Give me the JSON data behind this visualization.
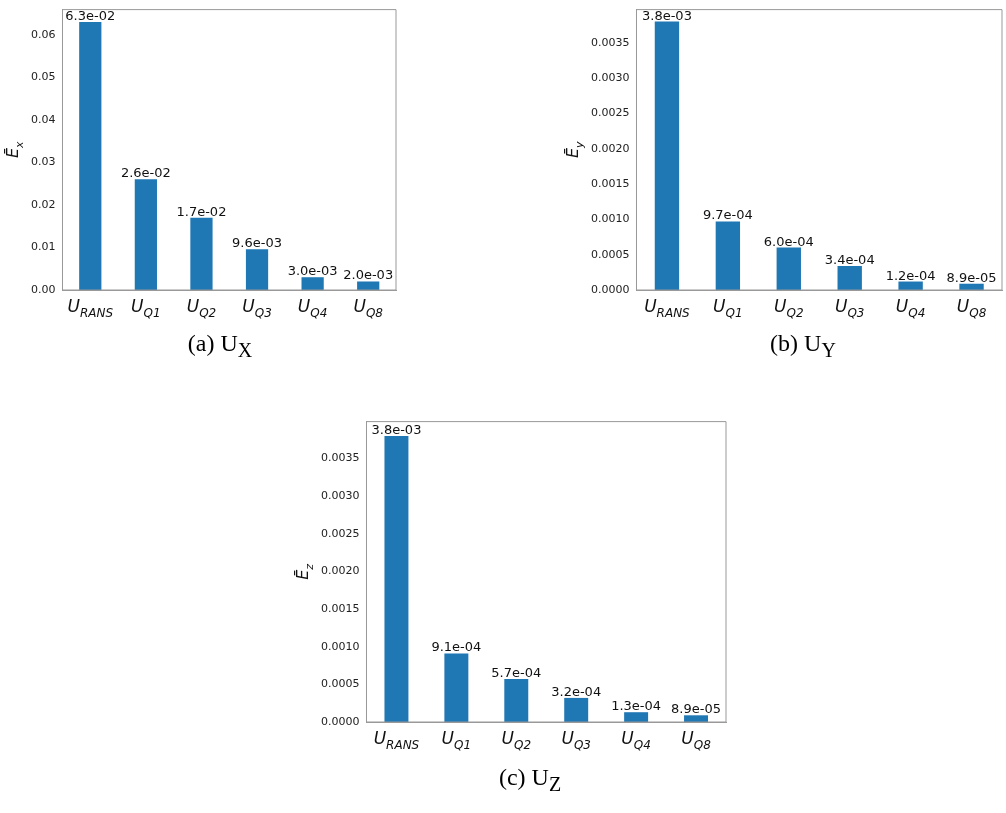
{
  "chart_data": [
    {
      "type": "bar",
      "title": "(a) U$_{X}$",
      "ylabel": "Ē$_{x}$",
      "categories": [
        "U$_{RANS}$",
        "U$_{Q1}$",
        "U$_{Q2}$",
        "U$_{Q3}$",
        "U$_{Q4}$",
        "U$_{Q8}$"
      ],
      "color": "#1f77b4",
      "grid": false,
      "values": [
        0.063,
        0.026,
        0.017,
        0.0096,
        0.003,
        0.002
      ],
      "value_labels": [
        "6.3e-02",
        "2.6e-02",
        "1.7e-02",
        "9.6e-03",
        "3.0e-03",
        "2.0e-03"
      ],
      "ylim": [
        0,
        0.0659
      ],
      "yticks": [
        {
          "value": 0,
          "label": "0.00"
        },
        {
          "value": 0.01,
          "label": "0.01"
        },
        {
          "value": 0.02,
          "label": "0.02"
        },
        {
          "value": 0.03,
          "label": "0.03"
        },
        {
          "value": 0.04,
          "label": "0.04"
        },
        {
          "value": 0.05,
          "label": "0.05"
        },
        {
          "value": 0.06,
          "label": "0.06"
        }
      ]
    },
    {
      "type": "bar",
      "title": "(b) U$_{Y}$",
      "ylabel": "Ē$_{y}$",
      "categories": [
        "U$_{RANS}$",
        "U$_{Q1}$",
        "U$_{Q2}$",
        "U$_{Q3}$",
        "U$_{Q4}$",
        "U$_{Q8}$"
      ],
      "color": "#1f77b4",
      "grid": false,
      "values": [
        0.0038,
        0.00097,
        0.0006,
        0.00034,
        0.00012,
        8.9e-05
      ],
      "value_labels": [
        "3.8e-03",
        "9.7e-04",
        "6.0e-04",
        "3.4e-04",
        "1.2e-04",
        "8.9e-05"
      ],
      "ylim": [
        0,
        0.00397
      ],
      "yticks": [
        {
          "value": 0,
          "label": "0.0000"
        },
        {
          "value": 0.0005,
          "label": "0.0005"
        },
        {
          "value": 0.001,
          "label": "0.0010"
        },
        {
          "value": 0.0015,
          "label": "0.0015"
        },
        {
          "value": 0.002,
          "label": "0.0020"
        },
        {
          "value": 0.0025,
          "label": "0.0025"
        },
        {
          "value": 0.003,
          "label": "0.0030"
        },
        {
          "value": 0.0035,
          "label": "0.0035"
        }
      ]
    },
    {
      "type": "bar",
      "title": "(c) U$_{Z}$",
      "ylabel": "Ē$_{z}$",
      "categories": [
        "U$_{RANS}$",
        "U$_{Q1}$",
        "U$_{Q2}$",
        "U$_{Q3}$",
        "U$_{Q4}$",
        "U$_{Q8}$"
      ],
      "color": "#1f77b4",
      "grid": false,
      "values": [
        0.0038,
        0.00091,
        0.00057,
        0.00032,
        0.00013,
        8.9e-05
      ],
      "value_labels": [
        "3.8e-03",
        "9.1e-04",
        "5.7e-04",
        "3.2e-04",
        "1.3e-04",
        "8.9e-05"
      ],
      "ylim": [
        0,
        0.00399
      ],
      "yticks": [
        {
          "value": 0,
          "label": "0.0000"
        },
        {
          "value": 0.0005,
          "label": "0.0005"
        },
        {
          "value": 0.001,
          "label": "0.0010"
        },
        {
          "value": 0.0015,
          "label": "0.0015"
        },
        {
          "value": 0.002,
          "label": "0.0020"
        },
        {
          "value": 0.0025,
          "label": "0.0025"
        },
        {
          "value": 0.003,
          "label": "0.0030"
        },
        {
          "value": 0.0035,
          "label": "0.0035"
        }
      ]
    }
  ]
}
